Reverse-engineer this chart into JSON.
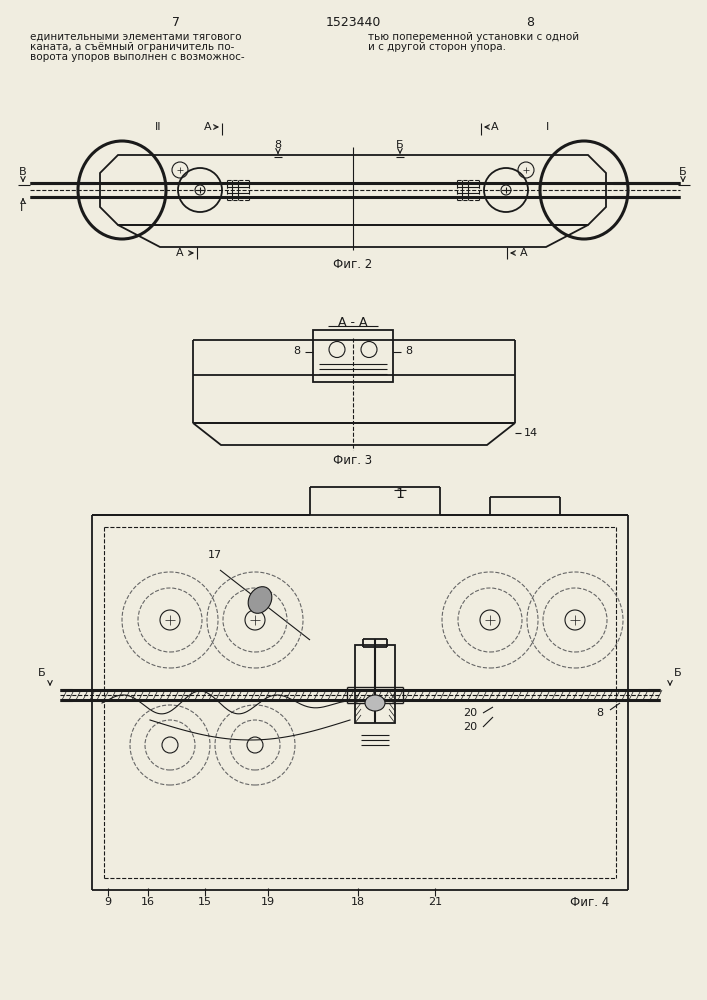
{
  "bg_color": "#f0ede0",
  "line_color": "#1a1a1a",
  "title_text": "1523440",
  "page_left": "7",
  "page_right": "8",
  "fig2_label": "Фиг. 2",
  "fig3_label": "Фиг. 3",
  "fig4_label": "Фиг. 4",
  "aa_label": "А - А",
  "fig_num_label": "1"
}
